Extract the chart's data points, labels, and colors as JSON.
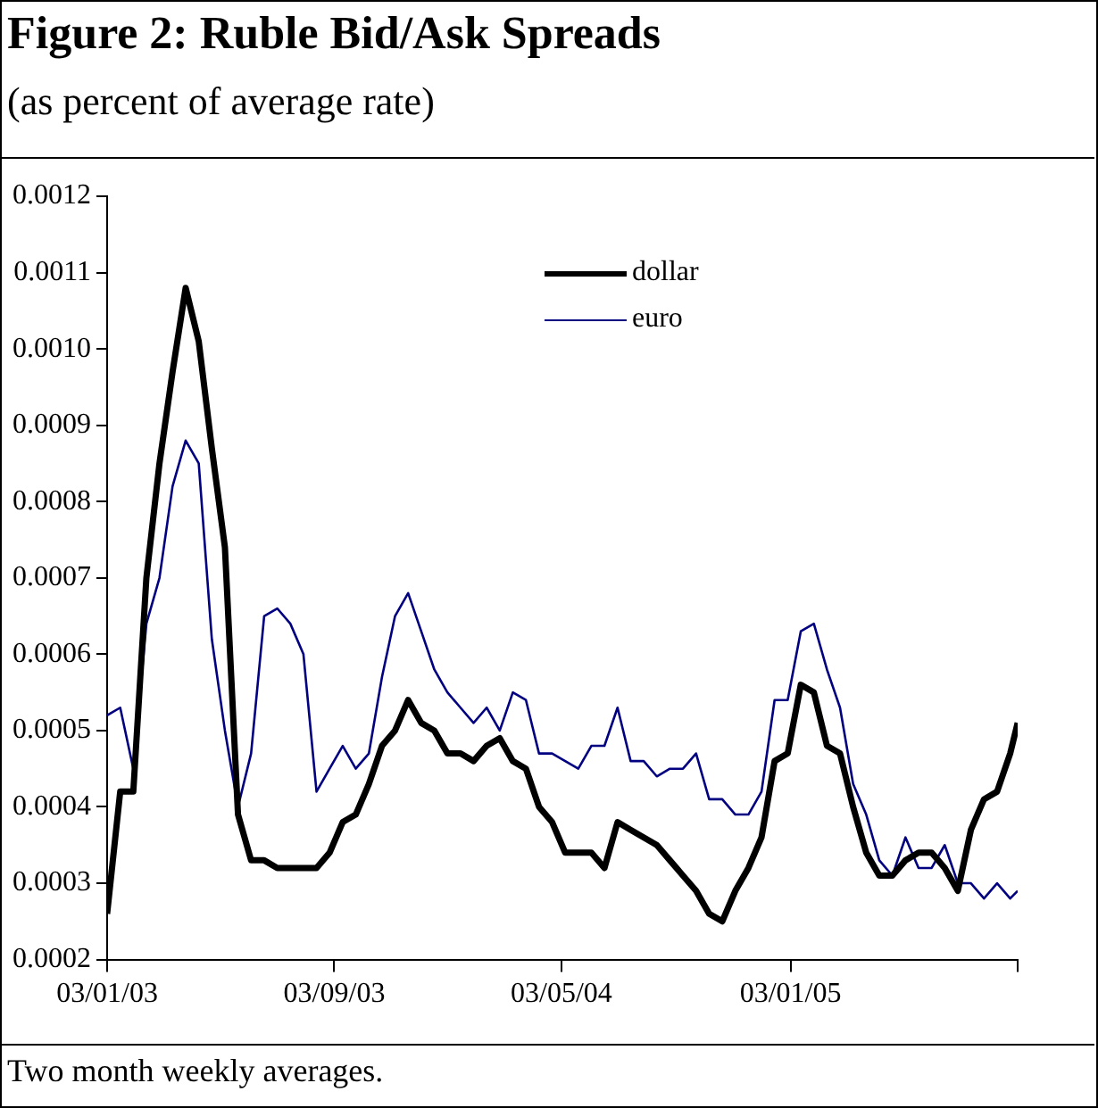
{
  "chart_data": {
    "type": "line",
    "title": "Figure 2: Ruble Bid/Ask Spreads",
    "subtitle": "(as percent of average rate)",
    "annotations": [
      "Two month weekly averages."
    ],
    "x": [
      "2003-01-03",
      "2003-01-17",
      "2003-01-31",
      "2003-02-14",
      "2003-02-28",
      "2003-03-14",
      "2003-03-28",
      "2003-04-11",
      "2003-04-25",
      "2003-05-09",
      "2003-05-23",
      "2003-06-06",
      "2003-06-20",
      "2003-07-04",
      "2003-07-18",
      "2003-08-01",
      "2003-08-15",
      "2003-08-29",
      "2003-09-12",
      "2003-09-26",
      "2003-10-10",
      "2003-10-24",
      "2003-11-07",
      "2003-11-21",
      "2003-12-05",
      "2003-12-19",
      "2004-01-02",
      "2004-01-16",
      "2004-01-30",
      "2004-02-13",
      "2004-02-27",
      "2004-03-12",
      "2004-03-26",
      "2004-04-09",
      "2004-04-23",
      "2004-05-07",
      "2004-05-21",
      "2004-06-04",
      "2004-06-18",
      "2004-07-02",
      "2004-07-16",
      "2004-07-30",
      "2004-08-13",
      "2004-08-27",
      "2004-09-10",
      "2004-09-24",
      "2004-10-08",
      "2004-10-22",
      "2004-11-05",
      "2004-11-19",
      "2004-12-03",
      "2004-12-17",
      "2004-12-31",
      "2005-01-14",
      "2005-01-28",
      "2005-02-11",
      "2005-02-25",
      "2005-03-11",
      "2005-03-25",
      "2005-04-08",
      "2005-04-22",
      "2005-05-06",
      "2005-05-20",
      "2005-06-03",
      "2005-06-17",
      "2005-07-01",
      "2005-07-15",
      "2005-07-29",
      "2005-08-12",
      "2005-08-26",
      "2005-09-03"
    ],
    "series": [
      {
        "name": "dollar",
        "color": "#000000",
        "values": [
          0.00026,
          0.00042,
          0.00042,
          0.0007,
          0.00085,
          0.00097,
          0.00108,
          0.00101,
          0.00087,
          0.00074,
          0.00039,
          0.00033,
          0.00033,
          0.00032,
          0.00032,
          0.00032,
          0.00032,
          0.00034,
          0.00038,
          0.00039,
          0.00043,
          0.00048,
          0.0005,
          0.00054,
          0.00051,
          0.0005,
          0.00047,
          0.00047,
          0.00046,
          0.00048,
          0.00049,
          0.00046,
          0.00045,
          0.0004,
          0.00038,
          0.00034,
          0.00034,
          0.00034,
          0.00032,
          0.00038,
          0.00037,
          0.00036,
          0.00035,
          0.00033,
          0.00031,
          0.00029,
          0.00026,
          0.00025,
          0.00029,
          0.00032,
          0.00036,
          0.00046,
          0.00047,
          0.00056,
          0.00055,
          0.00048,
          0.00047,
          0.0004,
          0.00034,
          0.00031,
          0.00031,
          0.00033,
          0.00034,
          0.00034,
          0.00032,
          0.00029,
          0.00037,
          0.00041,
          0.00042,
          0.00047,
          0.00051
        ]
      },
      {
        "name": "euro",
        "color": "#000080",
        "values": [
          0.00052,
          0.00053,
          0.00045,
          0.00064,
          0.0007,
          0.00082,
          0.00088,
          0.00085,
          0.00062,
          0.0005,
          0.0004,
          0.00047,
          0.00065,
          0.00066,
          0.00064,
          0.0006,
          0.00042,
          0.00045,
          0.00048,
          0.00045,
          0.00047,
          0.00057,
          0.00065,
          0.00068,
          0.00063,
          0.00058,
          0.00055,
          0.00053,
          0.00051,
          0.00053,
          0.0005,
          0.00055,
          0.00054,
          0.00047,
          0.00047,
          0.00046,
          0.00045,
          0.00048,
          0.00048,
          0.00053,
          0.00046,
          0.00046,
          0.00044,
          0.00045,
          0.00045,
          0.00047,
          0.00041,
          0.00041,
          0.00039,
          0.00039,
          0.00042,
          0.00054,
          0.00054,
          0.00063,
          0.00064,
          0.00058,
          0.00053,
          0.00043,
          0.00039,
          0.00033,
          0.00031,
          0.00036,
          0.00032,
          0.00032,
          0.00035,
          0.0003,
          0.0003,
          0.00028,
          0.0003,
          0.00028,
          0.00029
        ]
      }
    ],
    "xlim": [
      "2003-01-03",
      "2005-09-03"
    ],
    "xticks": [
      {
        "value": "2003-01-03",
        "label": "03/01/03"
      },
      {
        "value": "2003-09-03",
        "label": "03/09/03"
      },
      {
        "value": "2004-05-03",
        "label": "03/05/04"
      },
      {
        "value": "2005-01-03",
        "label": "03/01/05"
      },
      {
        "value": "2005-09-03",
        "label": null
      }
    ],
    "ylim": [
      0.0002,
      0.0012
    ],
    "yticks": [
      0.0002,
      0.0003,
      0.0004,
      0.0005,
      0.0006,
      0.0007,
      0.0008,
      0.0009,
      {
        "value": 0.001,
        "label": "0.0010"
      },
      0.0011,
      0.0012
    ],
    "legend": "top right",
    "marker": "none",
    "line_style": "solid"
  }
}
